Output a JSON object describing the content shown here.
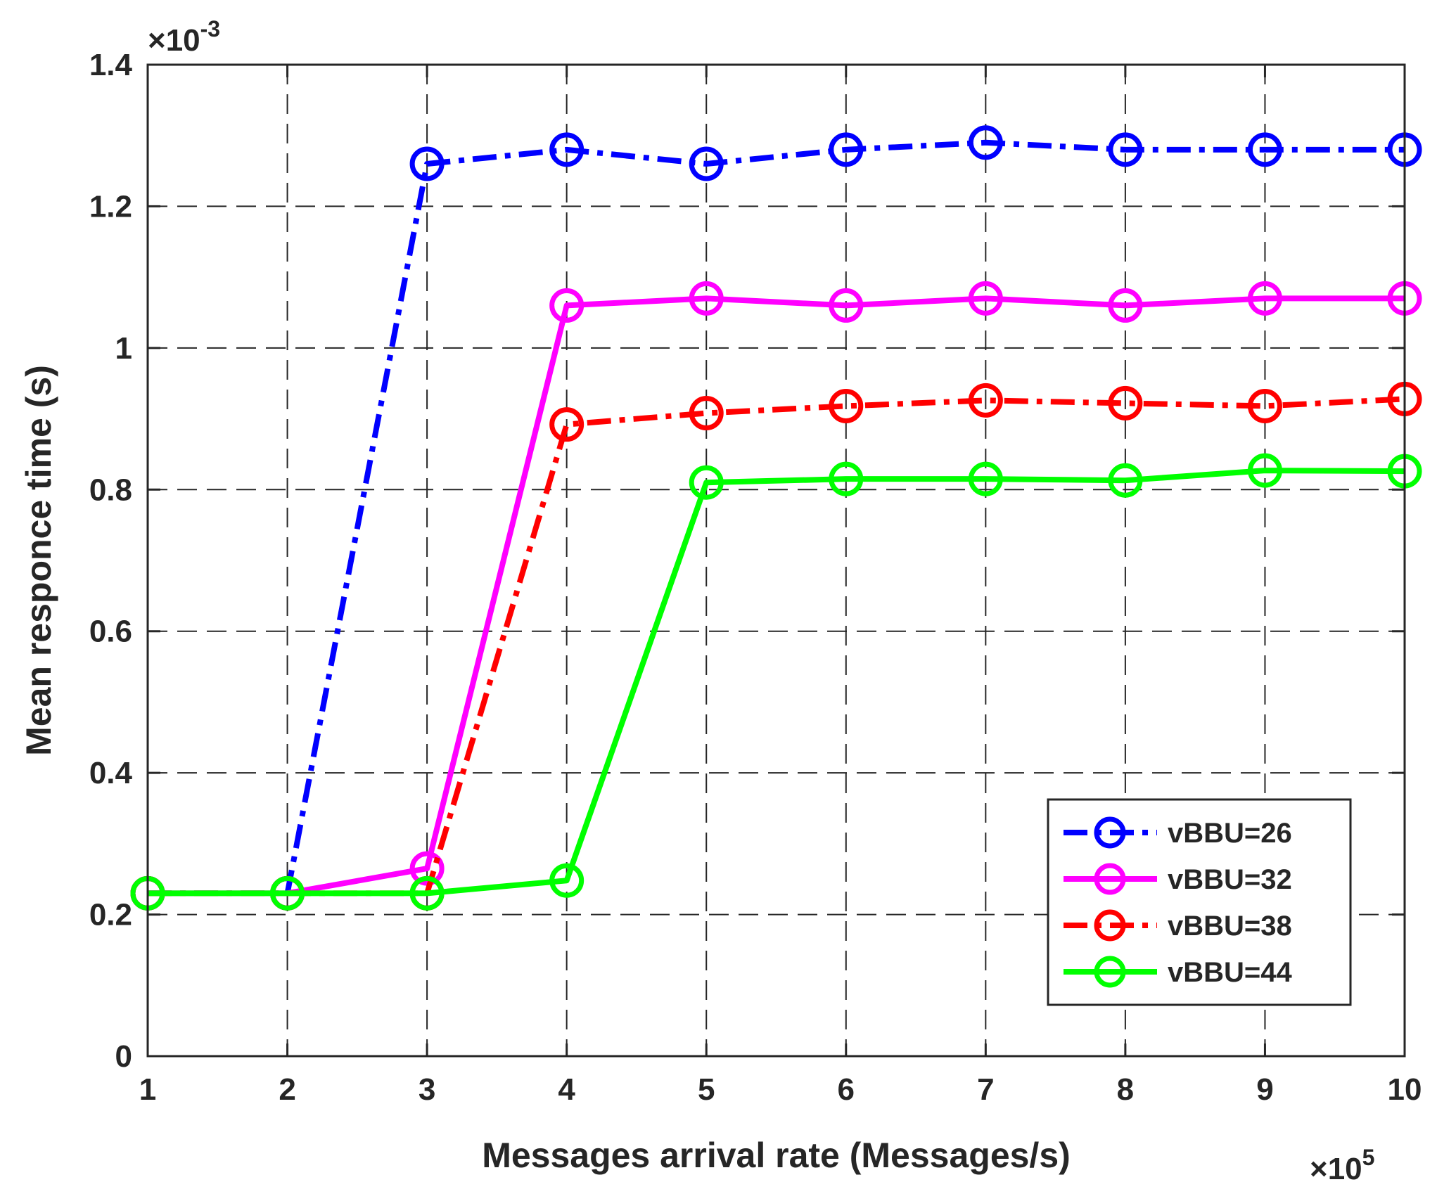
{
  "chart_data": {
    "type": "line",
    "xlabel": "Messages arrival rate (Messages/s)",
    "ylabel": "Mean responce time (s)",
    "x_multiplier": "×10",
    "x_multiplier_exp": "5",
    "y_multiplier": "×10",
    "y_multiplier_exp": "-3",
    "x": [
      1,
      2,
      3,
      4,
      5,
      6,
      7,
      8,
      9,
      10
    ],
    "xlim": [
      1,
      10
    ],
    "ylim": [
      0,
      1.4
    ],
    "xticks": [
      "1",
      "2",
      "3",
      "4",
      "5",
      "6",
      "7",
      "8",
      "9",
      "10"
    ],
    "yticks": [
      "0",
      "0.2",
      "0.4",
      "0.6",
      "0.8",
      "1",
      "1.2",
      "1.4"
    ],
    "grid": true,
    "legend_position": "bottom-right",
    "series": [
      {
        "name": "vBBU=26",
        "color": "#0000ff",
        "dash": "dash-dot",
        "marker": "circle",
        "values": [
          0.23,
          0.23,
          1.26,
          1.28,
          1.26,
          1.28,
          1.29,
          1.28,
          1.28,
          1.28
        ]
      },
      {
        "name": "vBBU=32",
        "color": "#ff00ff",
        "dash": "solid",
        "marker": "circle",
        "values": [
          0.23,
          0.23,
          0.265,
          1.06,
          1.07,
          1.06,
          1.07,
          1.06,
          1.07,
          1.07
        ]
      },
      {
        "name": "vBBU=38",
        "color": "#ff0000",
        "dash": "dash-dot",
        "marker": "circle",
        "values": [
          0.23,
          0.23,
          0.23,
          0.892,
          0.908,
          0.918,
          0.926,
          0.922,
          0.918,
          0.928
        ]
      },
      {
        "name": "vBBU=44",
        "color": "#00ff00",
        "dash": "solid",
        "marker": "circle",
        "values": [
          0.23,
          0.23,
          0.23,
          0.248,
          0.81,
          0.815,
          0.815,
          0.813,
          0.827,
          0.826
        ]
      }
    ]
  }
}
